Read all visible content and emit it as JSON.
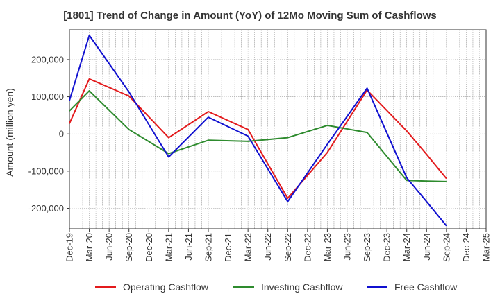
{
  "chart_data": {
    "type": "line",
    "title": "[1801]  Trend of Change in Amount (YoY) of 12Mo Moving Sum of Cashflows",
    "xlabel": "",
    "ylabel": "Amount (million yen)",
    "ylim": [
      -255000,
      280000
    ],
    "yticks": [
      -200000,
      -100000,
      0,
      100000,
      200000
    ],
    "ytick_labels": [
      "-200,000",
      "-100,000",
      "0",
      "100,000",
      "200,000"
    ],
    "grid": true,
    "legend_position": "bottom",
    "x_tick_labels": [
      "Dec-19",
      "Mar-20",
      "Jun-20",
      "Sep-20",
      "Dec-20",
      "Mar-21",
      "Jun-21",
      "Sep-21",
      "Dec-21",
      "Mar-22",
      "Jun-22",
      "Sep-22",
      "Dec-22",
      "Mar-23",
      "Jun-23",
      "Sep-23",
      "Dec-23",
      "Mar-24",
      "Jun-24",
      "Sep-24",
      "Dec-24",
      "Mar-25"
    ],
    "x": [
      "Dec-19",
      "Mar-20",
      "Sep-20",
      "Mar-21",
      "Sep-21",
      "Mar-22",
      "Sep-22",
      "Mar-23",
      "Sep-23",
      "Mar-24",
      "Jun-24",
      "Sep-24"
    ],
    "series": [
      {
        "name": "Operating Cashflow",
        "color": "#e31a1c",
        "values": [
          28000,
          148000,
          102000,
          -10000,
          60000,
          12000,
          -173000,
          -50000,
          118000,
          8000,
          -55000,
          -120000
        ]
      },
      {
        "name": "Investing Cashflow",
        "color": "#2e8b2e",
        "values": [
          62000,
          116000,
          12000,
          -53000,
          -17000,
          -20000,
          -10000,
          23000,
          4000,
          -125000,
          -127000,
          -128000
        ]
      },
      {
        "name": "Free Cashflow",
        "color": "#1010d0",
        "values": [
          90000,
          265000,
          113000,
          -62000,
          45000,
          -6000,
          -182000,
          -28000,
          123000,
          -118000,
          -182000,
          -247000
        ]
      }
    ]
  }
}
